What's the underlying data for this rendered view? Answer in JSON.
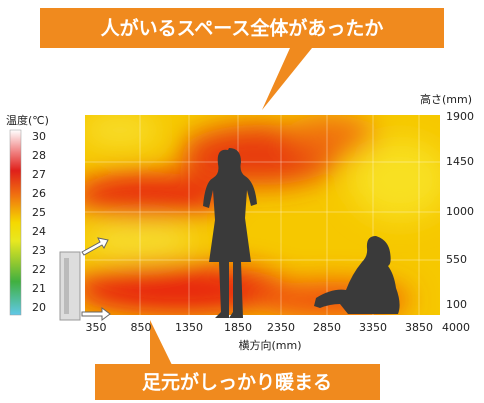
{
  "top_callout": "人がいるスペース全体があったか",
  "bottom_callout": "足元がしっかり暖まる",
  "legend": {
    "title": "温度(℃)",
    "labels": [
      "30",
      "28",
      "27",
      "26",
      "25",
      "24",
      "23",
      "22",
      "21",
      "20"
    ]
  },
  "y_axis": {
    "title": "高さ(mm)",
    "ticks": [
      "1900",
      "1450",
      "1000",
      "550",
      "100"
    ]
  },
  "x_axis": {
    "title": "横方向(mm)",
    "ticks": [
      "350",
      "850",
      "1350",
      "1850",
      "2350",
      "2850",
      "3350",
      "3850",
      "4000"
    ]
  }
}
